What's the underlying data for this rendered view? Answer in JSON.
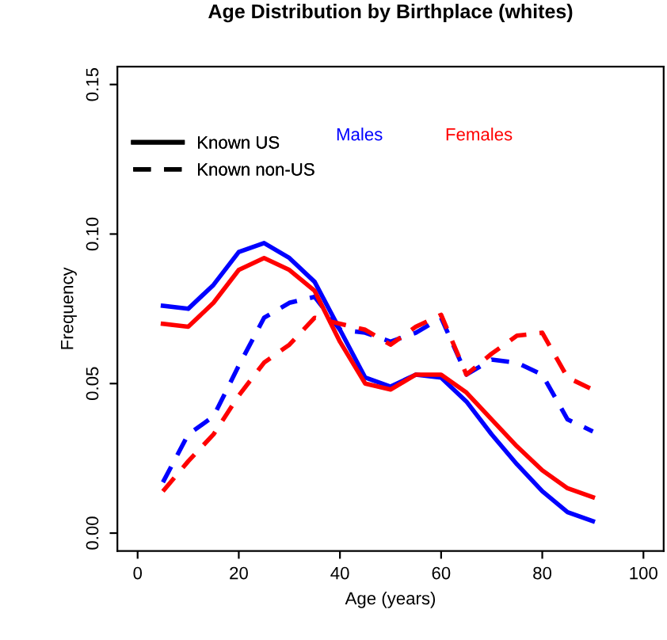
{
  "chart_data": {
    "type": "line",
    "title": "Age Distribution by Birthplace (whites)",
    "xlabel": "Age (years)",
    "ylabel": "Frequency",
    "x": [
      5,
      10,
      15,
      20,
      25,
      30,
      35,
      40,
      45,
      50,
      55,
      60,
      65,
      70,
      75,
      80,
      85,
      90
    ],
    "series": [
      {
        "color": "#0000ff",
        "line_style": "solid",
        "values": [
          0.076,
          0.075,
          0.083,
          0.094,
          0.097,
          0.092,
          0.084,
          0.068,
          0.052,
          0.049,
          0.053,
          0.052,
          0.044,
          0.033,
          0.023,
          0.014,
          0.007,
          0.004
        ]
      },
      {
        "color": "#0000ff",
        "line_style": "dashed",
        "values": [
          0.017,
          0.033,
          0.039,
          0.056,
          0.072,
          0.077,
          0.079,
          0.068,
          0.067,
          0.064,
          0.067,
          0.072,
          0.053,
          0.058,
          0.057,
          0.053,
          0.038,
          0.034
        ]
      },
      {
        "color": "#ff0000",
        "line_style": "solid",
        "values": [
          0.07,
          0.069,
          0.077,
          0.088,
          0.092,
          0.088,
          0.081,
          0.064,
          0.05,
          0.048,
          0.053,
          0.053,
          0.047,
          0.038,
          0.029,
          0.021,
          0.015,
          0.012
        ]
      },
      {
        "color": "#ff0000",
        "line_style": "dashed",
        "values": [
          0.014,
          0.024,
          0.033,
          0.046,
          0.057,
          0.063,
          0.072,
          0.07,
          0.068,
          0.063,
          0.069,
          0.073,
          0.053,
          0.06,
          0.066,
          0.067,
          0.052,
          0.048
        ]
      }
    ],
    "annotations": [
      "Known US",
      "Known non-US",
      "Males",
      "Females"
    ],
    "xlim": [
      -4,
      104
    ],
    "xticks": [
      0,
      20,
      40,
      60,
      80,
      100
    ],
    "ylim": [
      -0.006,
      0.156
    ],
    "yticks": [
      {
        "value": 0,
        "label": "0.00"
      },
      0.05,
      {
        "value": 0.1,
        "label": "0.10"
      },
      0.15
    ],
    "grid": false
  }
}
